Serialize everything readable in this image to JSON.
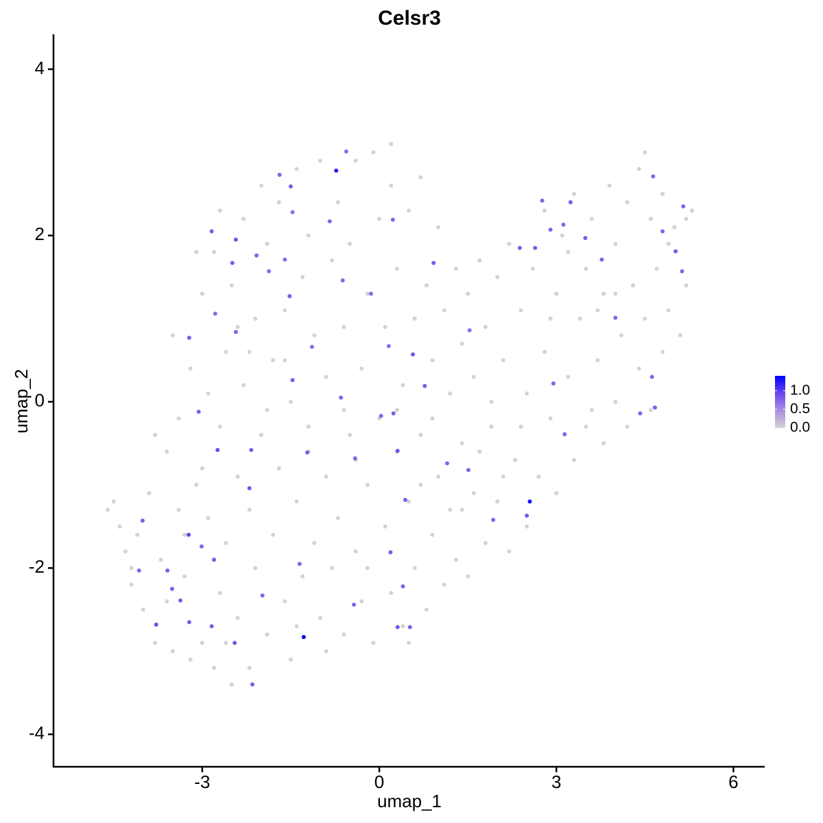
{
  "chart_data": {
    "type": "scatter",
    "title": "Celsr3",
    "x_label": "umap_1",
    "y_label": "umap_2",
    "xlim": [
      -5.52,
      6.53
    ],
    "ylim": [
      -4.39,
      4.42
    ],
    "xticks": [
      -3,
      0,
      3,
      6
    ],
    "yticks": [
      -4,
      -2,
      0,
      2,
      4
    ],
    "grid": false,
    "legend_position": "right",
    "color_low": "#d3d3d3",
    "color_high": "#0000ff",
    "color_range": [
      0,
      1.4
    ],
    "color_ticks": [
      {
        "value": 0,
        "label": "0.0"
      },
      {
        "value": 0.5,
        "label": "0.5"
      },
      {
        "value": 1,
        "label": "1.0"
      }
    ],
    "x": [
      -4.6,
      -4.5,
      -4.4,
      -4.3,
      -4.2,
      -4.1,
      -4.0,
      -3.9,
      -3.8,
      -3.7,
      -3.6,
      -3.6,
      -3.5,
      -3.4,
      -3.4,
      -3.3,
      -3.2,
      -3.2,
      -3.1,
      -3.0,
      -3.0,
      -2.9,
      -2.9,
      -2.8,
      -2.8,
      -2.7,
      -2.7,
      -2.6,
      -2.6,
      -2.5,
      -2.5,
      -2.4,
      -2.4,
      -2.3,
      -2.3,
      -2.2,
      -2.2,
      -2.1,
      -2.1,
      -2.0,
      -2.0,
      -1.9,
      -1.9,
      -1.8,
      -1.8,
      -1.7,
      -1.7,
      -1.6,
      -1.6,
      -1.5,
      -1.5,
      -1.4,
      -1.4,
      -1.3,
      -1.3,
      -1.2,
      -1.2,
      -1.1,
      -1.1,
      -1.0,
      -1.0,
      -0.9,
      -0.9,
      -0.8,
      -0.8,
      -0.7,
      -0.7,
      -0.6,
      -0.6,
      -0.5,
      -0.5,
      -0.4,
      -0.4,
      -0.3,
      -0.3,
      -0.2,
      -0.2,
      -0.1,
      -0.1,
      0.0,
      0.0,
      0.1,
      0.1,
      0.2,
      0.2,
      0.3,
      0.3,
      0.4,
      0.4,
      0.5,
      0.5,
      0.6,
      0.6,
      0.7,
      0.7,
      0.8,
      0.8,
      0.9,
      0.9,
      1.0,
      1.0,
      1.1,
      1.1,
      1.2,
      1.2,
      1.3,
      1.3,
      1.4,
      1.4,
      1.5,
      1.5,
      1.6,
      1.6,
      1.7,
      1.8,
      1.8,
      1.9,
      2.0,
      2.0,
      2.1,
      2.2,
      2.2,
      2.3,
      2.4,
      2.5,
      2.5,
      2.6,
      2.7,
      2.8,
      2.8,
      2.9,
      3.0,
      3.0,
      3.1,
      3.2,
      3.3,
      3.3,
      3.4,
      3.5,
      3.5,
      3.6,
      3.7,
      3.8,
      3.8,
      3.9,
      4.0,
      4.0,
      4.1,
      4.2,
      4.2,
      4.3,
      4.4,
      4.4,
      4.5,
      4.6,
      4.6,
      4.7,
      4.8,
      4.8,
      4.9,
      5.0,
      5.1,
      5.2,
      5.3,
      4.5,
      0.2,
      -3.0,
      -2.6,
      -0.9,
      0.5,
      -3.8,
      -3.5,
      -3.1,
      -2.7,
      -1.9,
      -1.2,
      -0.4,
      0.3,
      1.7,
      3.6,
      -2.4,
      -1.6,
      -0.6,
      0.9,
      1.9,
      2.4,
      3.2,
      4.0,
      4.9,
      5.2,
      -4.2,
      -3.3,
      -2.2,
      -1.4,
      -0.2,
      0.7,
      1.4,
      2.1,
      2.9,
      3.7,
      -0.73,
      -1.28,
      2.55,
      -3.23,
      -1.69,
      -1.5,
      -0.56,
      -0.84,
      -1.47,
      -2.84,
      -2.43,
      -2.49,
      -2.08,
      -1.87,
      -1.6,
      -1.52,
      -2.78,
      -3.22,
      -2.43,
      -1.14,
      -0.62,
      -0.14,
      0.23,
      0.92,
      1.53,
      0.57,
      0.16,
      0.77,
      -0.65,
      0.24,
      0.03,
      -1.47,
      -3.06,
      -2.74,
      -2.17,
      -2.2,
      -1.22,
      -0.41,
      0.31,
      0.44,
      1.15,
      1.51,
      1.93,
      2.5,
      0.19,
      0.4,
      0.31,
      0.52,
      -0.43,
      -1.35,
      -1.98,
      -2.45,
      -2.15,
      -2.8,
      -3.01,
      -3.59,
      -4.07,
      -4.01,
      -3.78,
      -3.22,
      -3.51,
      -3.37,
      -2.84,
      2.95,
      3.14,
      3.49,
      3.77,
      4.0,
      4.8,
      5.02,
      5.13,
      5.15,
      4.62,
      4.42,
      4.67,
      4.64,
      2.38,
      2.64,
      2.76,
      2.9,
      3.24,
      3.12
    ],
    "values": [
      -1.3,
      -1.2,
      -1.5,
      -1.8,
      -2.2,
      -1.6,
      -2.5,
      -1.1,
      -2.9,
      -1.9,
      -0.6,
      -2.4,
      -3.0,
      -1.3,
      -0.2,
      -2.1,
      -3.1,
      0.4,
      -1.0,
      -2.9,
      1.3,
      0.1,
      -1.4,
      -3.2,
      1.8,
      -0.3,
      -2.3,
      0.6,
      -1.7,
      -3.4,
      1.4,
      -0.9,
      -2.6,
      0.2,
      2.2,
      -1.3,
      -3.2,
      1.0,
      -2.0,
      -0.4,
      2.6,
      -2.8,
      1.9,
      0.5,
      -1.6,
      -0.8,
      2.4,
      -2.4,
      1.1,
      -3.1,
      0.0,
      -1.2,
      2.8,
      1.5,
      -2.1,
      -0.3,
      2.0,
      -1.7,
      0.8,
      -2.6,
      2.9,
      0.3,
      -0.9,
      1.7,
      -2.0,
      2.4,
      -1.4,
      0.9,
      -2.8,
      -0.4,
      1.9,
      2.9,
      -1.8,
      0.4,
      -2.4,
      1.3,
      -1.0,
      3.0,
      -2.9,
      -0.2,
      2.2,
      0.9,
      -1.5,
      2.6,
      -2.3,
      -0.6,
      1.6,
      -2.7,
      0.2,
      2.3,
      -1.2,
      1.0,
      -2.0,
      2.7,
      -0.4,
      -2.5,
      1.4,
      -1.6,
      0.5,
      2.1,
      -0.9,
      -2.2,
      1.1,
      0.1,
      -1.3,
      1.6,
      -1.9,
      -0.5,
      0.7,
      -2.1,
      1.3,
      -1.1,
      0.3,
      1.7,
      -1.7,
      0.9,
      -0.3,
      1.5,
      -1.2,
      0.5,
      -1.8,
      1.9,
      -0.7,
      1.1,
      -1.5,
      0.1,
      1.6,
      -0.9,
      2.3,
      0.6,
      -0.2,
      1.3,
      -1.1,
      2.0,
      0.3,
      -0.7,
      2.5,
      1.0,
      -0.3,
      1.6,
      2.2,
      0.5,
      -0.5,
      1.3,
      2.6,
      0.0,
      1.9,
      0.8,
      -0.3,
      2.4,
      1.4,
      0.4,
      2.8,
      1.0,
      -0.1,
      2.2,
      1.6,
      0.6,
      2.5,
      1.1,
      2.1,
      0.8,
      1.4,
      2.3,
      3.0,
      3.1,
      -0.8,
      -2.9,
      -3.0,
      -2.9,
      -0.4,
      0.8,
      1.8,
      2.3,
      -0.1,
      -0.6,
      -0.7,
      -0.1,
      -0.6,
      -0.1,
      0.9,
      0.5,
      -0.1,
      -0.2,
      0.0,
      -0.3,
      1.8,
      1.3,
      1.9,
      2.2,
      -2.0,
      -1.6,
      0.6,
      -2.7,
      -2.0,
      -1.0,
      -1.3,
      -0.9,
      1.0,
      1.1,
      2.78,
      -2.83,
      -1.2,
      -1.6,
      2.73,
      2.59,
      3.01,
      2.17,
      2.28,
      2.05,
      1.95,
      1.67,
      1.76,
      1.57,
      1.71,
      1.27,
      1.06,
      0.77,
      0.84,
      0.66,
      1.46,
      1.3,
      2.19,
      1.67,
      0.86,
      0.57,
      0.67,
      0.19,
      0.05,
      -0.14,
      -0.17,
      0.26,
      -0.12,
      -0.58,
      -0.58,
      -1.04,
      -0.61,
      -0.68,
      -0.59,
      -1.18,
      -0.74,
      -0.82,
      -1.42,
      -1.37,
      -1.81,
      -2.22,
      -2.71,
      -2.71,
      -2.44,
      -1.95,
      -2.33,
      -2.9,
      -3.4,
      -1.9,
      -1.74,
      -2.03,
      -2.03,
      -1.43,
      -2.68,
      -2.65,
      -2.25,
      -2.39,
      -2.7,
      0.22,
      -0.39,
      1.97,
      1.71,
      1.01,
      2.05,
      1.81,
      1.57,
      2.35,
      0.3,
      -0.14,
      -0.07,
      2.71,
      1.85,
      1.85,
      2.42,
      2.07,
      2.4,
      2.13
    ],
    "expression": [
      0,
      0,
      0,
      0,
      0,
      0,
      0,
      0,
      0,
      0,
      0,
      0,
      0,
      0,
      0,
      0,
      0,
      0,
      0,
      0,
      0,
      0,
      0,
      0,
      0,
      0,
      0,
      0,
      0,
      0,
      0,
      0,
      0,
      0,
      0,
      0,
      0,
      0,
      0,
      0,
      0,
      0,
      0,
      0,
      0,
      0,
      0,
      0,
      0,
      0,
      0,
      0,
      0,
      0,
      0,
      0,
      0,
      0,
      0,
      0,
      0,
      0,
      0,
      0,
      0,
      0,
      0,
      0,
      0,
      0,
      0,
      0,
      0,
      0,
      0,
      0,
      0,
      0,
      0,
      0,
      0,
      0,
      0,
      0,
      0,
      0,
      0,
      0,
      0,
      0,
      0,
      0,
      0,
      0,
      0,
      0,
      0,
      0,
      0,
      0,
      0,
      0,
      0,
      0,
      0,
      0,
      0,
      0,
      0,
      0,
      0,
      0,
      0,
      0,
      0,
      0,
      0,
      0,
      0,
      0,
      0,
      0,
      0,
      0,
      0,
      0,
      0,
      0,
      0,
      0,
      0,
      0,
      0,
      0,
      0,
      0,
      0,
      0,
      0,
      0,
      0,
      0,
      0,
      0,
      0,
      0,
      0,
      0,
      0,
      0,
      0,
      0,
      0,
      0,
      0,
      0,
      0,
      0,
      0,
      0,
      0,
      0,
      0,
      0,
      0,
      0,
      0,
      0,
      0,
      0,
      0,
      0,
      0,
      0,
      0,
      0,
      0,
      0,
      0,
      0,
      0,
      0,
      0,
      0,
      0,
      0,
      0,
      0,
      0,
      0,
      0,
      0,
      0,
      0,
      0,
      0,
      0,
      0,
      0,
      0,
      1.25,
      1.4,
      1.3,
      0.95,
      0.75,
      0.8,
      0.7,
      0.75,
      0.7,
      0.8,
      0.85,
      0.8,
      0.75,
      0.7,
      0.7,
      0.8,
      0.7,
      0.8,
      0.75,
      0.7,
      0.75,
      0.7,
      0.75,
      0.8,
      0.7,
      0.85,
      0.7,
      0.8,
      0.75,
      0.8,
      0.75,
      0.8,
      0.8,
      0.9,
      0.8,
      0.85,
      0.8,
      0.75,
      0.85,
      0.8,
      0.75,
      0.75,
      0.75,
      0.8,
      0.8,
      0.8,
      0.85,
      0.8,
      0.75,
      0.75,
      0.75,
      0.85,
      0.8,
      0.8,
      0.75,
      0.8,
      0.75,
      0.8,
      0.9,
      0.8,
      0.8,
      0.8,
      0.8,
      0.75,
      0.75,
      0.8,
      0.75,
      0.75,
      0.75,
      0.8,
      0.75,
      0.75,
      0.75,
      0.75,
      0.8,
      0.75,
      0.8,
      0.8,
      0.75,
      0.75,
      0.8,
      0.75
    ]
  }
}
